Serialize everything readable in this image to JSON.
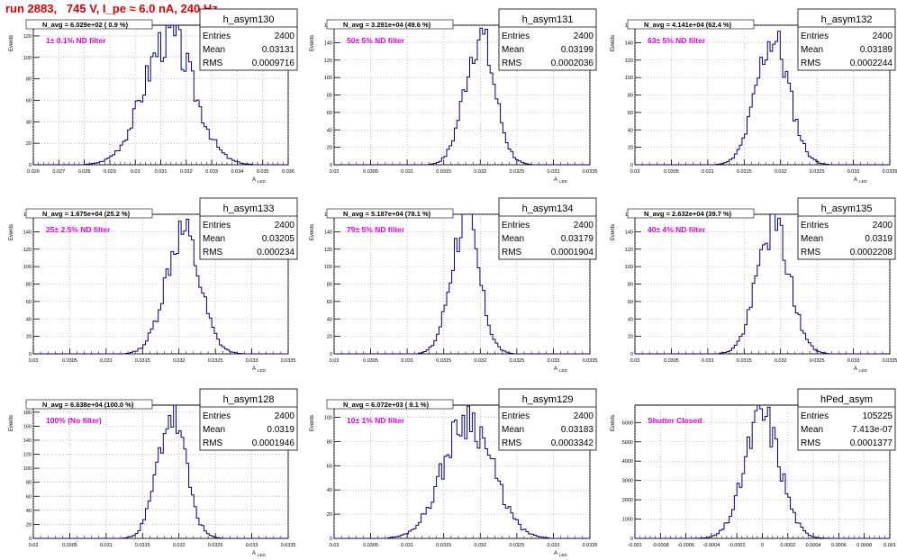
{
  "header": {
    "title": "run 2883,   745 V, I_pe ≈ 6.0 nA, 240 Hz"
  },
  "colors": {
    "histogram": "#000080",
    "title": "#e00000",
    "annotation": "#e000e0",
    "grid": "#9a9a9a"
  },
  "chart_data": [
    {
      "type": "histogram",
      "name": "h_asym130",
      "ylabel": "Events",
      "xlabel": "A",
      "xlabel_sub": "LED",
      "n_avg_label": "N_avg = 6.029e+02 ( 0.9 %)",
      "annotation": "1± 0.1% ND filter",
      "stats": [
        [
          "Entries",
          "2400"
        ],
        [
          "Mean",
          "0.03131"
        ],
        [
          "RMS",
          "0.0009716"
        ]
      ],
      "xlim": [
        0.026,
        0.036
      ],
      "ylim": [
        0,
        130
      ],
      "xticks": [
        "0.026",
        "0.027",
        "0.028",
        "0.029",
        "0.03",
        "0.031",
        "0.032",
        "0.033",
        "0.034",
        "0.035",
        "0.036"
      ],
      "yticks": [
        0,
        20,
        40,
        60,
        80,
        100,
        120
      ],
      "dist": {
        "mean": 0.03131,
        "rms": 0.0009716,
        "peak": 120,
        "seed": 3
      }
    },
    {
      "type": "histogram",
      "name": "h_asym131",
      "ylabel": "Events",
      "xlabel": "A",
      "xlabel_sub": "LED",
      "n_avg_label": "N_avg = 3.291e+04 (49.6 %)",
      "annotation": "50± 5% ND filter",
      "stats": [
        [
          "Entries",
          "2400"
        ],
        [
          "Mean",
          "0.03199"
        ],
        [
          "RMS",
          "0.0002036"
        ]
      ],
      "xlim": [
        0.03,
        0.0335
      ],
      "ylim": [
        0,
        160
      ],
      "xticks": [
        "0.03",
        "0.0305",
        "0.031",
        "0.0315",
        "0.032",
        "0.0325",
        "0.033",
        "0.0335"
      ],
      "yticks": [
        0,
        20,
        40,
        60,
        80,
        100,
        120,
        140,
        160
      ],
      "dist": {
        "mean": 0.03199,
        "rms": 0.0002036,
        "peak": 148,
        "seed": 7
      }
    },
    {
      "type": "histogram",
      "name": "h_asym132",
      "ylabel": "Events",
      "xlabel": "A",
      "xlabel_sub": "LED",
      "n_avg_label": "N_avg = 4.141e+04 (62.4 %)",
      "annotation": "63± 5% ND filter",
      "stats": [
        [
          "Entries",
          "2400"
        ],
        [
          "Mean",
          "0.03189"
        ],
        [
          "RMS",
          "0.0002244"
        ]
      ],
      "xlim": [
        0.03,
        0.0335
      ],
      "ylim": [
        0,
        160
      ],
      "xticks": [
        "0.03",
        "0.0305",
        "0.031",
        "0.0315",
        "0.032",
        "0.0325",
        "0.033",
        "0.0335"
      ],
      "yticks": [
        0,
        20,
        40,
        60,
        80,
        100,
        120,
        140,
        160
      ],
      "dist": {
        "mean": 0.03189,
        "rms": 0.0002244,
        "peak": 145,
        "seed": 11
      }
    },
    {
      "type": "histogram",
      "name": "h_asym133",
      "ylabel": "Events",
      "xlabel": "A",
      "xlabel_sub": "LED",
      "n_avg_label": "N_avg = 1.675e+04 (25.2 %)",
      "annotation": "25± 2.5% ND filter",
      "stats": [
        [
          "Entries",
          "2400"
        ],
        [
          "Mean",
          "0.03205"
        ],
        [
          "RMS",
          "0.000234"
        ]
      ],
      "xlim": [
        0.03,
        0.0335
      ],
      "ylim": [
        0,
        160
      ],
      "xticks": [
        "0.03",
        "0.0305",
        "0.031",
        "0.0315",
        "0.032",
        "0.0325",
        "0.033",
        "0.0335"
      ],
      "yticks": [
        0,
        20,
        40,
        60,
        80,
        100,
        120,
        140,
        160
      ],
      "dist": {
        "mean": 0.03205,
        "rms": 0.000234,
        "peak": 140,
        "seed": 13
      }
    },
    {
      "type": "histogram",
      "name": "h_asym134",
      "ylabel": "Events",
      "xlabel": "A",
      "xlabel_sub": "LED",
      "n_avg_label": "N_avg = 5.187e+04 (78.1 %)",
      "annotation": "79± 5% ND filter",
      "stats": [
        [
          "Entries",
          "2400"
        ],
        [
          "Mean",
          "0.03179"
        ],
        [
          "RMS",
          "0.0001904"
        ]
      ],
      "xlim": [
        0.03,
        0.0335
      ],
      "ylim": [
        0,
        160
      ],
      "xticks": [
        "0.03",
        "0.0305",
        "0.031",
        "0.0315",
        "0.032",
        "0.0325",
        "0.033",
        "0.0335"
      ],
      "yticks": [
        0,
        20,
        40,
        60,
        80,
        100,
        120,
        140,
        160
      ],
      "dist": {
        "mean": 0.03179,
        "rms": 0.0001904,
        "peak": 155,
        "seed": 17
      }
    },
    {
      "type": "histogram",
      "name": "h_asym135",
      "ylabel": "Events",
      "xlabel": "A",
      "xlabel_sub": "LED",
      "n_avg_label": "N_avg = 2.632e+04 (39.7 %)",
      "annotation": "40± 4% ND filter",
      "stats": [
        [
          "Entries",
          "2400"
        ],
        [
          "Mean",
          "0.0319"
        ],
        [
          "RMS",
          "0.0002208"
        ]
      ],
      "xlim": [
        0.03,
        0.0335
      ],
      "ylim": [
        0,
        160
      ],
      "xticks": [
        "0.03",
        "0.0305",
        "0.031",
        "0.0315",
        "0.032",
        "0.0325",
        "0.033",
        "0.0335"
      ],
      "yticks": [
        0,
        20,
        40,
        60,
        80,
        100,
        120,
        140,
        160
      ],
      "dist": {
        "mean": 0.0319,
        "rms": 0.0002208,
        "peak": 148,
        "seed": 19
      }
    },
    {
      "type": "histogram",
      "name": "h_asym128",
      "ylabel": "Events",
      "xlabel": "A",
      "xlabel_sub": "LED",
      "n_avg_label": "N_avg = 6.638e+04 (100.0 %)",
      "annotation": "100% (No filter)",
      "stats": [
        [
          "Entries",
          "2400"
        ],
        [
          "Mean",
          "0.0319"
        ],
        [
          "RMS",
          "0.0001946"
        ]
      ],
      "xlim": [
        0.03,
        0.0335
      ],
      "ylim": [
        0,
        190
      ],
      "xticks": [
        "0.03",
        "0.0305",
        "0.031",
        "0.0315",
        "0.032",
        "0.0325",
        "0.033",
        "0.0335"
      ],
      "yticks": [
        0,
        20,
        40,
        60,
        80,
        100,
        120,
        140,
        160,
        180
      ],
      "dist": {
        "mean": 0.0319,
        "rms": 0.0001946,
        "peak": 175,
        "seed": 23
      }
    },
    {
      "type": "histogram",
      "name": "h_asym129",
      "ylabel": "Events",
      "xlabel": "A",
      "xlabel_sub": "LED",
      "n_avg_label": "N_avg = 6.072e+03 ( 9.1 %)",
      "annotation": "10± 1% ND filter",
      "stats": [
        [
          "Entries",
          "2400"
        ],
        [
          "Mean",
          "0.03183"
        ],
        [
          "RMS",
          "0.0003342"
        ]
      ],
      "xlim": [
        0.03,
        0.0335
      ],
      "ylim": [
        0,
        110
      ],
      "xticks": [
        "0.03",
        "0.0305",
        "0.031",
        "0.0315",
        "0.032",
        "0.0325",
        "0.033",
        "0.0335"
      ],
      "yticks": [
        0,
        20,
        40,
        60,
        80,
        100
      ],
      "dist": {
        "mean": 0.03183,
        "rms": 0.0003342,
        "peak": 100,
        "seed": 29
      }
    },
    {
      "type": "histogram",
      "name": "hPed_asym",
      "ylabel": "Events",
      "xlabel": "",
      "xlabel_sub": "",
      "n_avg_label": "",
      "annotation": "Shutter Closed",
      "stats": [
        [
          "Entries",
          "105225"
        ],
        [
          "Mean",
          "7.413e-07"
        ],
        [
          "RMS",
          "0.0001377"
        ]
      ],
      "xlim": [
        -0.001,
        0.001
      ],
      "ylim": [
        0,
        6900
      ],
      "xticks": [
        "-0.001",
        "-0.0008",
        "-0.0006",
        "-0.0004",
        "-0.0002",
        "0",
        "0.0002",
        "0.0004",
        "0.0006",
        "0.0008",
        "0.001"
      ],
      "yticks": [
        0,
        1000,
        2000,
        3000,
        4000,
        5000,
        6000
      ],
      "dist": {
        "mean": 7.413e-07,
        "rms": 0.0001377,
        "peak": 6350,
        "seed": 31
      }
    }
  ]
}
